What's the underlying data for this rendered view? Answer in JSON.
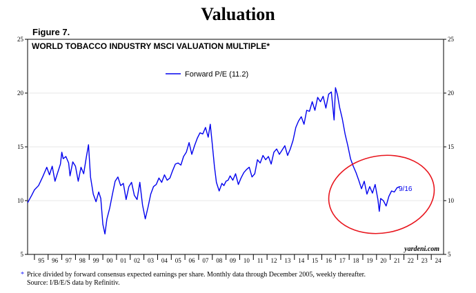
{
  "page_title": "Valuation",
  "figure_label": "Figure 7.",
  "footnote": {
    "marker": "*",
    "line1": "Price divided by forward consensus expected earnings per share. Monthly data through December 2005, weekly thereafter.",
    "line2": "Source: I/B/E/S data by Refinitiv."
  },
  "chart_data": {
    "type": "line",
    "title": "WORLD TOBACCO INDUSTRY MSCI VALUATION MULTIPLE*",
    "source_tag": "yardeni.com",
    "ylim": [
      5,
      25
    ],
    "yticks": [
      5,
      10,
      15,
      20,
      25
    ],
    "ytick_labels": [
      "5",
      "10",
      "15",
      "20",
      "25"
    ],
    "xlim": [
      1994.5,
      2024.9
    ],
    "year_labels": [
      "95",
      "96",
      "97",
      "98",
      "99",
      "00",
      "01",
      "02",
      "03",
      "04",
      "05",
      "06",
      "07",
      "08",
      "09",
      "10",
      "11",
      "12",
      "13",
      "14",
      "15",
      "16",
      "17",
      "18",
      "19",
      "20",
      "21",
      "22",
      "23",
      "24"
    ],
    "legend": "Forward P/E (11.2)",
    "end_label": "9/16",
    "colors": {
      "line": "#0000ee",
      "annotation": "#e8141c"
    },
    "series": [
      {
        "name": "Forward P/E",
        "x": [
          1994.5,
          1994.8,
          1995.0,
          1995.3,
          1995.6,
          1995.9,
          1996.1,
          1996.3,
          1996.5,
          1996.7,
          1996.9,
          1997.0,
          1997.1,
          1997.3,
          1997.5,
          1997.6,
          1997.8,
          1998.0,
          1998.2,
          1998.4,
          1998.6,
          1998.8,
          1998.95,
          1999.1,
          1999.3,
          1999.5,
          1999.7,
          1999.85,
          2000.0,
          2000.15,
          2000.3,
          2000.5,
          2000.7,
          2000.9,
          2001.1,
          2001.3,
          2001.5,
          2001.7,
          2001.9,
          2002.1,
          2002.3,
          2002.5,
          2002.7,
          2002.9,
          2003.1,
          2003.3,
          2003.5,
          2003.7,
          2003.9,
          2004.1,
          2004.3,
          2004.5,
          2004.7,
          2004.9,
          2005.1,
          2005.3,
          2005.5,
          2005.7,
          2005.9,
          2006.1,
          2006.3,
          2006.5,
          2006.7,
          2006.9,
          2007.1,
          2007.3,
          2007.5,
          2007.7,
          2007.85,
          2008.0,
          2008.15,
          2008.3,
          2008.5,
          2008.7,
          2008.85,
          2009.0,
          2009.15,
          2009.3,
          2009.5,
          2009.7,
          2009.9,
          2010.1,
          2010.3,
          2010.5,
          2010.7,
          2010.9,
          2011.1,
          2011.3,
          2011.5,
          2011.7,
          2011.9,
          2012.1,
          2012.3,
          2012.5,
          2012.7,
          2012.9,
          2013.1,
          2013.3,
          2013.5,
          2013.7,
          2013.9,
          2014.1,
          2014.3,
          2014.5,
          2014.7,
          2014.9,
          2015.1,
          2015.3,
          2015.5,
          2015.7,
          2015.9,
          2016.1,
          2016.3,
          2016.5,
          2016.7,
          2016.9,
          2017.0,
          2017.15,
          2017.3,
          2017.5,
          2017.7,
          2017.9,
          2018.1,
          2018.3,
          2018.5,
          2018.7,
          2018.9,
          2019.1,
          2019.3,
          2019.5,
          2019.7,
          2019.9,
          2020.1,
          2020.2,
          2020.3,
          2020.5,
          2020.7,
          2020.9,
          2021.1,
          2021.3,
          2021.5,
          2021.7
        ],
        "values": [
          9.8,
          10.5,
          11.0,
          11.4,
          12.2,
          13.1,
          12.4,
          13.2,
          11.8,
          12.6,
          13.4,
          14.5,
          13.9,
          14.1,
          13.5,
          12.3,
          13.6,
          13.2,
          11.8,
          13.1,
          12.5,
          14.1,
          15.2,
          12.2,
          10.6,
          9.9,
          10.8,
          10.2,
          7.8,
          6.9,
          8.3,
          9.3,
          10.6,
          11.8,
          12.2,
          11.4,
          11.6,
          10.1,
          11.3,
          11.7,
          10.5,
          10.1,
          11.7,
          9.6,
          8.3,
          9.4,
          10.6,
          11.3,
          11.5,
          12.1,
          11.7,
          12.4,
          11.9,
          12.1,
          12.8,
          13.4,
          13.5,
          13.3,
          14.1,
          14.5,
          15.4,
          14.3,
          15.1,
          15.8,
          16.3,
          16.2,
          16.8,
          15.9,
          17.1,
          15.2,
          13.2,
          11.7,
          10.9,
          11.6,
          11.4,
          11.8,
          11.9,
          12.3,
          11.9,
          12.5,
          11.5,
          12.1,
          12.6,
          12.9,
          13.1,
          12.2,
          12.5,
          13.8,
          13.5,
          14.2,
          13.8,
          14.1,
          13.4,
          14.5,
          14.8,
          14.3,
          14.7,
          15.1,
          14.2,
          14.8,
          15.6,
          16.8,
          17.4,
          17.8,
          17.1,
          18.4,
          18.3,
          19.2,
          18.4,
          19.6,
          19.2,
          19.7,
          18.6,
          19.9,
          20.1,
          17.5,
          20.5,
          19.8,
          18.7,
          17.6,
          16.2,
          15.1,
          13.9,
          13.2,
          12.6,
          11.9,
          11.1,
          11.8,
          10.6,
          11.3,
          10.7,
          11.5,
          10.1,
          9.0,
          10.2,
          10.0,
          9.5,
          10.4,
          10.9,
          10.8,
          11.2,
          11.3
        ]
      }
    ]
  }
}
